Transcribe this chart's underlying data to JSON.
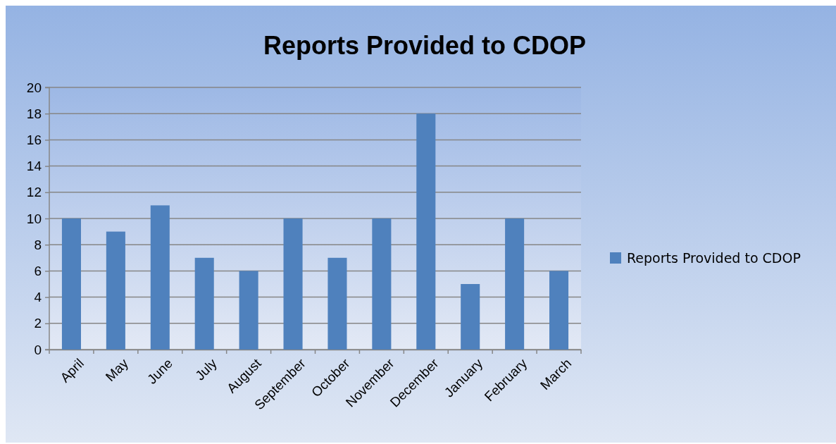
{
  "chart_data": {
    "type": "bar",
    "title": "Reports Provided to CDOP",
    "categories": [
      "April",
      "May",
      "June",
      "July",
      "August",
      "September",
      "October",
      "November",
      "December",
      "January",
      "February",
      "March"
    ],
    "series": [
      {
        "name": "Reports Provided to CDOP",
        "color": "#4f81bd",
        "values": [
          10,
          9,
          11,
          7,
          6,
          10,
          7,
          10,
          18,
          5,
          10,
          6
        ]
      }
    ],
    "ylim": [
      0,
      20
    ],
    "yticks": [
      0,
      2,
      4,
      6,
      8,
      10,
      12,
      14,
      16,
      18,
      20
    ],
    "grid": "y",
    "legend": "right"
  }
}
